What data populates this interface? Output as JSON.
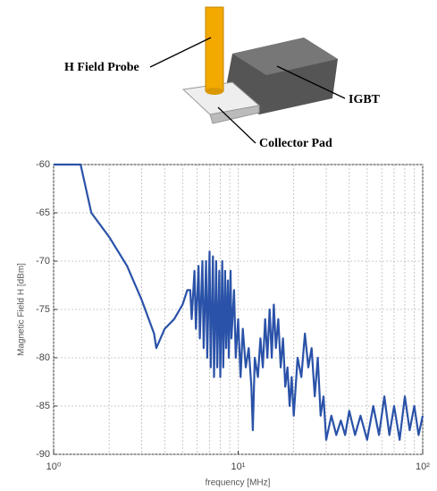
{
  "illustration": {
    "probe_label": "H Field Probe",
    "device_label": "IGBT",
    "pad_label": "Collector Pad"
  },
  "chart_data": {
    "type": "line",
    "xlabel": "frequency [MHz]",
    "ylabel": "Magnetic Field H [dBm]",
    "color": "#2a52a8",
    "xscale": "log",
    "grid": true,
    "xlim": [
      1,
      100
    ],
    "ylim": [
      -90,
      -60
    ],
    "xticks": [
      {
        "value": 1,
        "label": "10⁰"
      },
      {
        "value": 10,
        "label": "10¹"
      },
      {
        "value": 100,
        "label": "10²"
      }
    ],
    "yticks": [
      -90,
      -85,
      -80,
      -75,
      -70,
      -65,
      -60
    ],
    "x": [
      1,
      1.4,
      1.6,
      2,
      2.5,
      3,
      3.5,
      3.6,
      4,
      4.5,
      5,
      5.3,
      5.5,
      5.6,
      5.8,
      5.9,
      6.1,
      6.2,
      6.4,
      6.5,
      6.7,
      6.8,
      7.0,
      7.1,
      7.3,
      7.4,
      7.6,
      7.7,
      7.9,
      8.0,
      8.2,
      8.3,
      8.5,
      8.6,
      8.8,
      8.9,
      9.1,
      9.2,
      9.5,
      9.7,
      10,
      10.3,
      10.6,
      11,
      11.4,
      11.8,
      12,
      12.3,
      12.8,
      13.2,
      13.6,
      14,
      14.4,
      14.8,
      15.2,
      15.6,
      16,
      16.5,
      17,
      17.5,
      18,
      18.5,
      19,
      19.5,
      20,
      21,
      22,
      23,
      24,
      25,
      26,
      27,
      28,
      29,
      30,
      32,
      34,
      36,
      38,
      40,
      43,
      46,
      50,
      54,
      58,
      62,
      66,
      70,
      75,
      80,
      85,
      90,
      95,
      100
    ],
    "values": [
      -60,
      -60,
      -65,
      -67.5,
      -70.5,
      -74,
      -77.5,
      -79,
      -77,
      -76,
      -74.5,
      -73,
      -73,
      -76,
      -71,
      -77,
      -70.5,
      -78,
      -70,
      -79,
      -70,
      -80,
      -69,
      -81,
      -69.5,
      -82,
      -70,
      -81,
      -71,
      -82,
      -70,
      -81,
      -71,
      -79,
      -72,
      -80,
      -71,
      -78,
      -73,
      -80,
      -76,
      -82,
      -77,
      -81,
      -79,
      -83,
      -87.5,
      -80,
      -82,
      -78,
      -81,
      -76,
      -80,
      -75,
      -80,
      -74.5,
      -79,
      -76,
      -81,
      -78,
      -83,
      -81,
      -85,
      -82,
      -86,
      -80,
      -82,
      -77.5,
      -81,
      -79,
      -84,
      -80,
      -86,
      -84,
      -88.5,
      -86,
      -88,
      -86.5,
      -88,
      -85.5,
      -88,
      -86,
      -88.5,
      -85,
      -88,
      -84,
      -88,
      -85,
      -88.5,
      -84,
      -87.5,
      -85,
      -88,
      -86
    ]
  }
}
